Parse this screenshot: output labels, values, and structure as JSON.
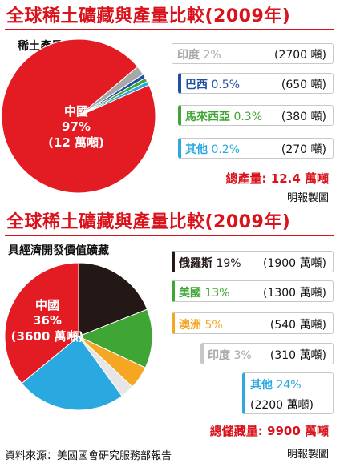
{
  "chart_data": [
    {
      "type": "pie",
      "title": "全球稀土礦藏與產量比較(2009年)",
      "subtitle": "稀土產量",
      "total": "總產量: 12.4 萬噸",
      "credit": "明報製圖",
      "center_label": {
        "name": "中國",
        "pct": "97%",
        "amount": "(12 萬噸)"
      },
      "slices": [
        {
          "name": "中國",
          "value": 97,
          "pct": "97%",
          "amount": "(12 萬噸)",
          "color": "#e31b23"
        },
        {
          "name": "印度",
          "value": 2,
          "pct": "2%",
          "amount": "(2700 噸)",
          "color": "#a8a8a8"
        },
        {
          "name": "巴西",
          "value": 0.5,
          "pct": "0.5%",
          "amount": "(650 噸)",
          "color": "#1f4fa3"
        },
        {
          "name": "馬來西亞",
          "value": 0.3,
          "pct": "0.3%",
          "amount": "(380 噸)",
          "color": "#3fa535"
        },
        {
          "name": "其他",
          "value": 0.2,
          "pct": "0.2%",
          "amount": "(270 噸)",
          "color": "#2aa8e0"
        }
      ]
    },
    {
      "type": "pie",
      "title": "全球稀土礦藏與產量比較(2009年)",
      "subtitle": "具經濟開發價值礦藏",
      "total": "總儲藏量: 9900 萬噸",
      "credit": "明報製圖",
      "center_label": {
        "name": "中國",
        "pct": "36%",
        "amount": "(3600 萬噸)"
      },
      "slices": [
        {
          "name": "中國",
          "value": 36,
          "pct": "36%",
          "amount": "(3600 萬噸)",
          "color": "#e31b23"
        },
        {
          "name": "俄羅斯",
          "value": 19,
          "pct": "19%",
          "amount": "(1900 萬噸)",
          "color": "#231815"
        },
        {
          "name": "美國",
          "value": 13,
          "pct": "13%",
          "amount": "(1300 萬噸)",
          "color": "#3fa535"
        },
        {
          "name": "澳洲",
          "value": 5,
          "pct": "5%",
          "amount": "(540 萬噸)",
          "color": "#f5a623"
        },
        {
          "name": "印度",
          "value": 3,
          "pct": "3%",
          "amount": "(310 萬噸)",
          "color": "#e6e6e6"
        },
        {
          "name": "其他",
          "value": 24,
          "pct": "24%",
          "amount": "(2200 萬噸)",
          "color": "#2aa8e0"
        }
      ]
    }
  ],
  "source": "資料來源：美國國會研究服務部報告"
}
